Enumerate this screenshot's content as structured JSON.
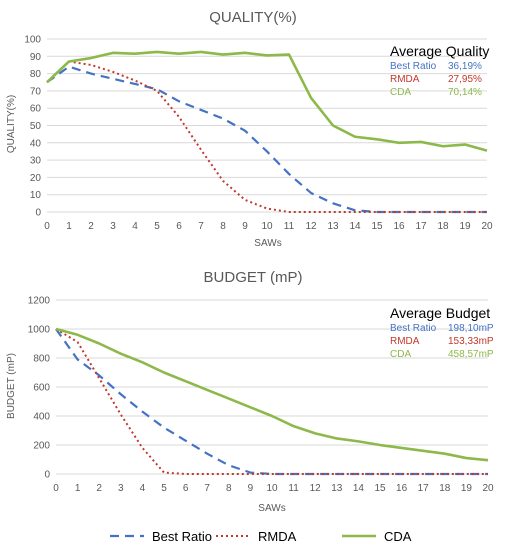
{
  "colors": {
    "best_ratio": "#4472c4",
    "rmda": "#c0392b",
    "cda": "#8db84a",
    "text": "#595959",
    "grid": "#d9d9d9"
  },
  "legend": [
    {
      "name": "Best Ratio",
      "style": "dashed",
      "color_key": "best_ratio"
    },
    {
      "name": "RMDA",
      "style": "dotted",
      "color_key": "rmda"
    },
    {
      "name": "CDA",
      "style": "solid",
      "color_key": "cda"
    }
  ],
  "chart_data": [
    {
      "type": "line",
      "title": "QUALITY(%)",
      "xlabel": "SAWs",
      "ylabel": "QUALITY(%)",
      "x": [
        0,
        1,
        2,
        3,
        4,
        5,
        6,
        7,
        8,
        9,
        10,
        11,
        12,
        13,
        14,
        15,
        16,
        17,
        18,
        19,
        20
      ],
      "xlim": [
        0,
        20
      ],
      "ylim": [
        0,
        100
      ],
      "yticks": [
        0,
        10,
        20,
        30,
        40,
        50,
        60,
        70,
        80,
        90,
        100
      ],
      "grid": true,
      "series": [
        {
          "name": "Best Ratio",
          "values": [
            75,
            84,
            80,
            77,
            74,
            71,
            64,
            59,
            54,
            47,
            35,
            22,
            11,
            5,
            1,
            0,
            0,
            0,
            0,
            0,
            0
          ]
        },
        {
          "name": "RMDA",
          "values": [
            75,
            87,
            85,
            81,
            76,
            70,
            55,
            36,
            18,
            7,
            2,
            0,
            0,
            0,
            0,
            0,
            0,
            0,
            0,
            0,
            0
          ]
        },
        {
          "name": "CDA",
          "values": [
            75,
            87,
            89,
            92,
            91.5,
            92.5,
            91.5,
            92.5,
            91,
            92,
            90.5,
            91,
            66,
            50,
            43.5,
            42,
            40,
            40.5,
            38,
            39,
            35.5
          ]
        }
      ],
      "annotation": {
        "title": "Average Quality",
        "rows": [
          {
            "label": "Best Ratio",
            "value": "36,19%"
          },
          {
            "label": "RMDA",
            "value": "27,95%"
          },
          {
            "label": "CDA",
            "value": "70,14%"
          }
        ]
      }
    },
    {
      "type": "line",
      "title": "BUDGET (mP)",
      "xlabel": "SAWs",
      "ylabel": "BUDGET (mP)",
      "x": [
        0,
        1,
        2,
        3,
        4,
        5,
        6,
        7,
        8,
        9,
        10,
        11,
        12,
        13,
        14,
        15,
        16,
        17,
        18,
        19,
        20
      ],
      "xlim": [
        0,
        20
      ],
      "ylim": [
        0,
        1200
      ],
      "yticks": [
        0,
        200,
        400,
        600,
        800,
        1000,
        1200
      ],
      "grid": true,
      "series": [
        {
          "name": "Best Ratio",
          "values": [
            1000,
            790,
            680,
            550,
            430,
            320,
            230,
            140,
            60,
            10,
            0,
            0,
            0,
            0,
            0,
            0,
            0,
            0,
            0,
            0,
            0
          ]
        },
        {
          "name": "RMDA",
          "values": [
            1000,
            910,
            660,
            410,
            180,
            10,
            0,
            0,
            0,
            0,
            0,
            0,
            0,
            0,
            0,
            0,
            0,
            0,
            0,
            0,
            0
          ]
        },
        {
          "name": "CDA",
          "values": [
            1000,
            960,
            900,
            830,
            770,
            700,
            640,
            580,
            520,
            460,
            400,
            330,
            280,
            245,
            225,
            200,
            180,
            160,
            140,
            110,
            95
          ]
        }
      ],
      "annotation": {
        "title": "Average Budget",
        "rows": [
          {
            "label": "Best Ratio",
            "value": "198,10mP"
          },
          {
            "label": "RMDA",
            "value": "153,33mP"
          },
          {
            "label": "CDA",
            "value": "458,57mP"
          }
        ]
      }
    }
  ]
}
